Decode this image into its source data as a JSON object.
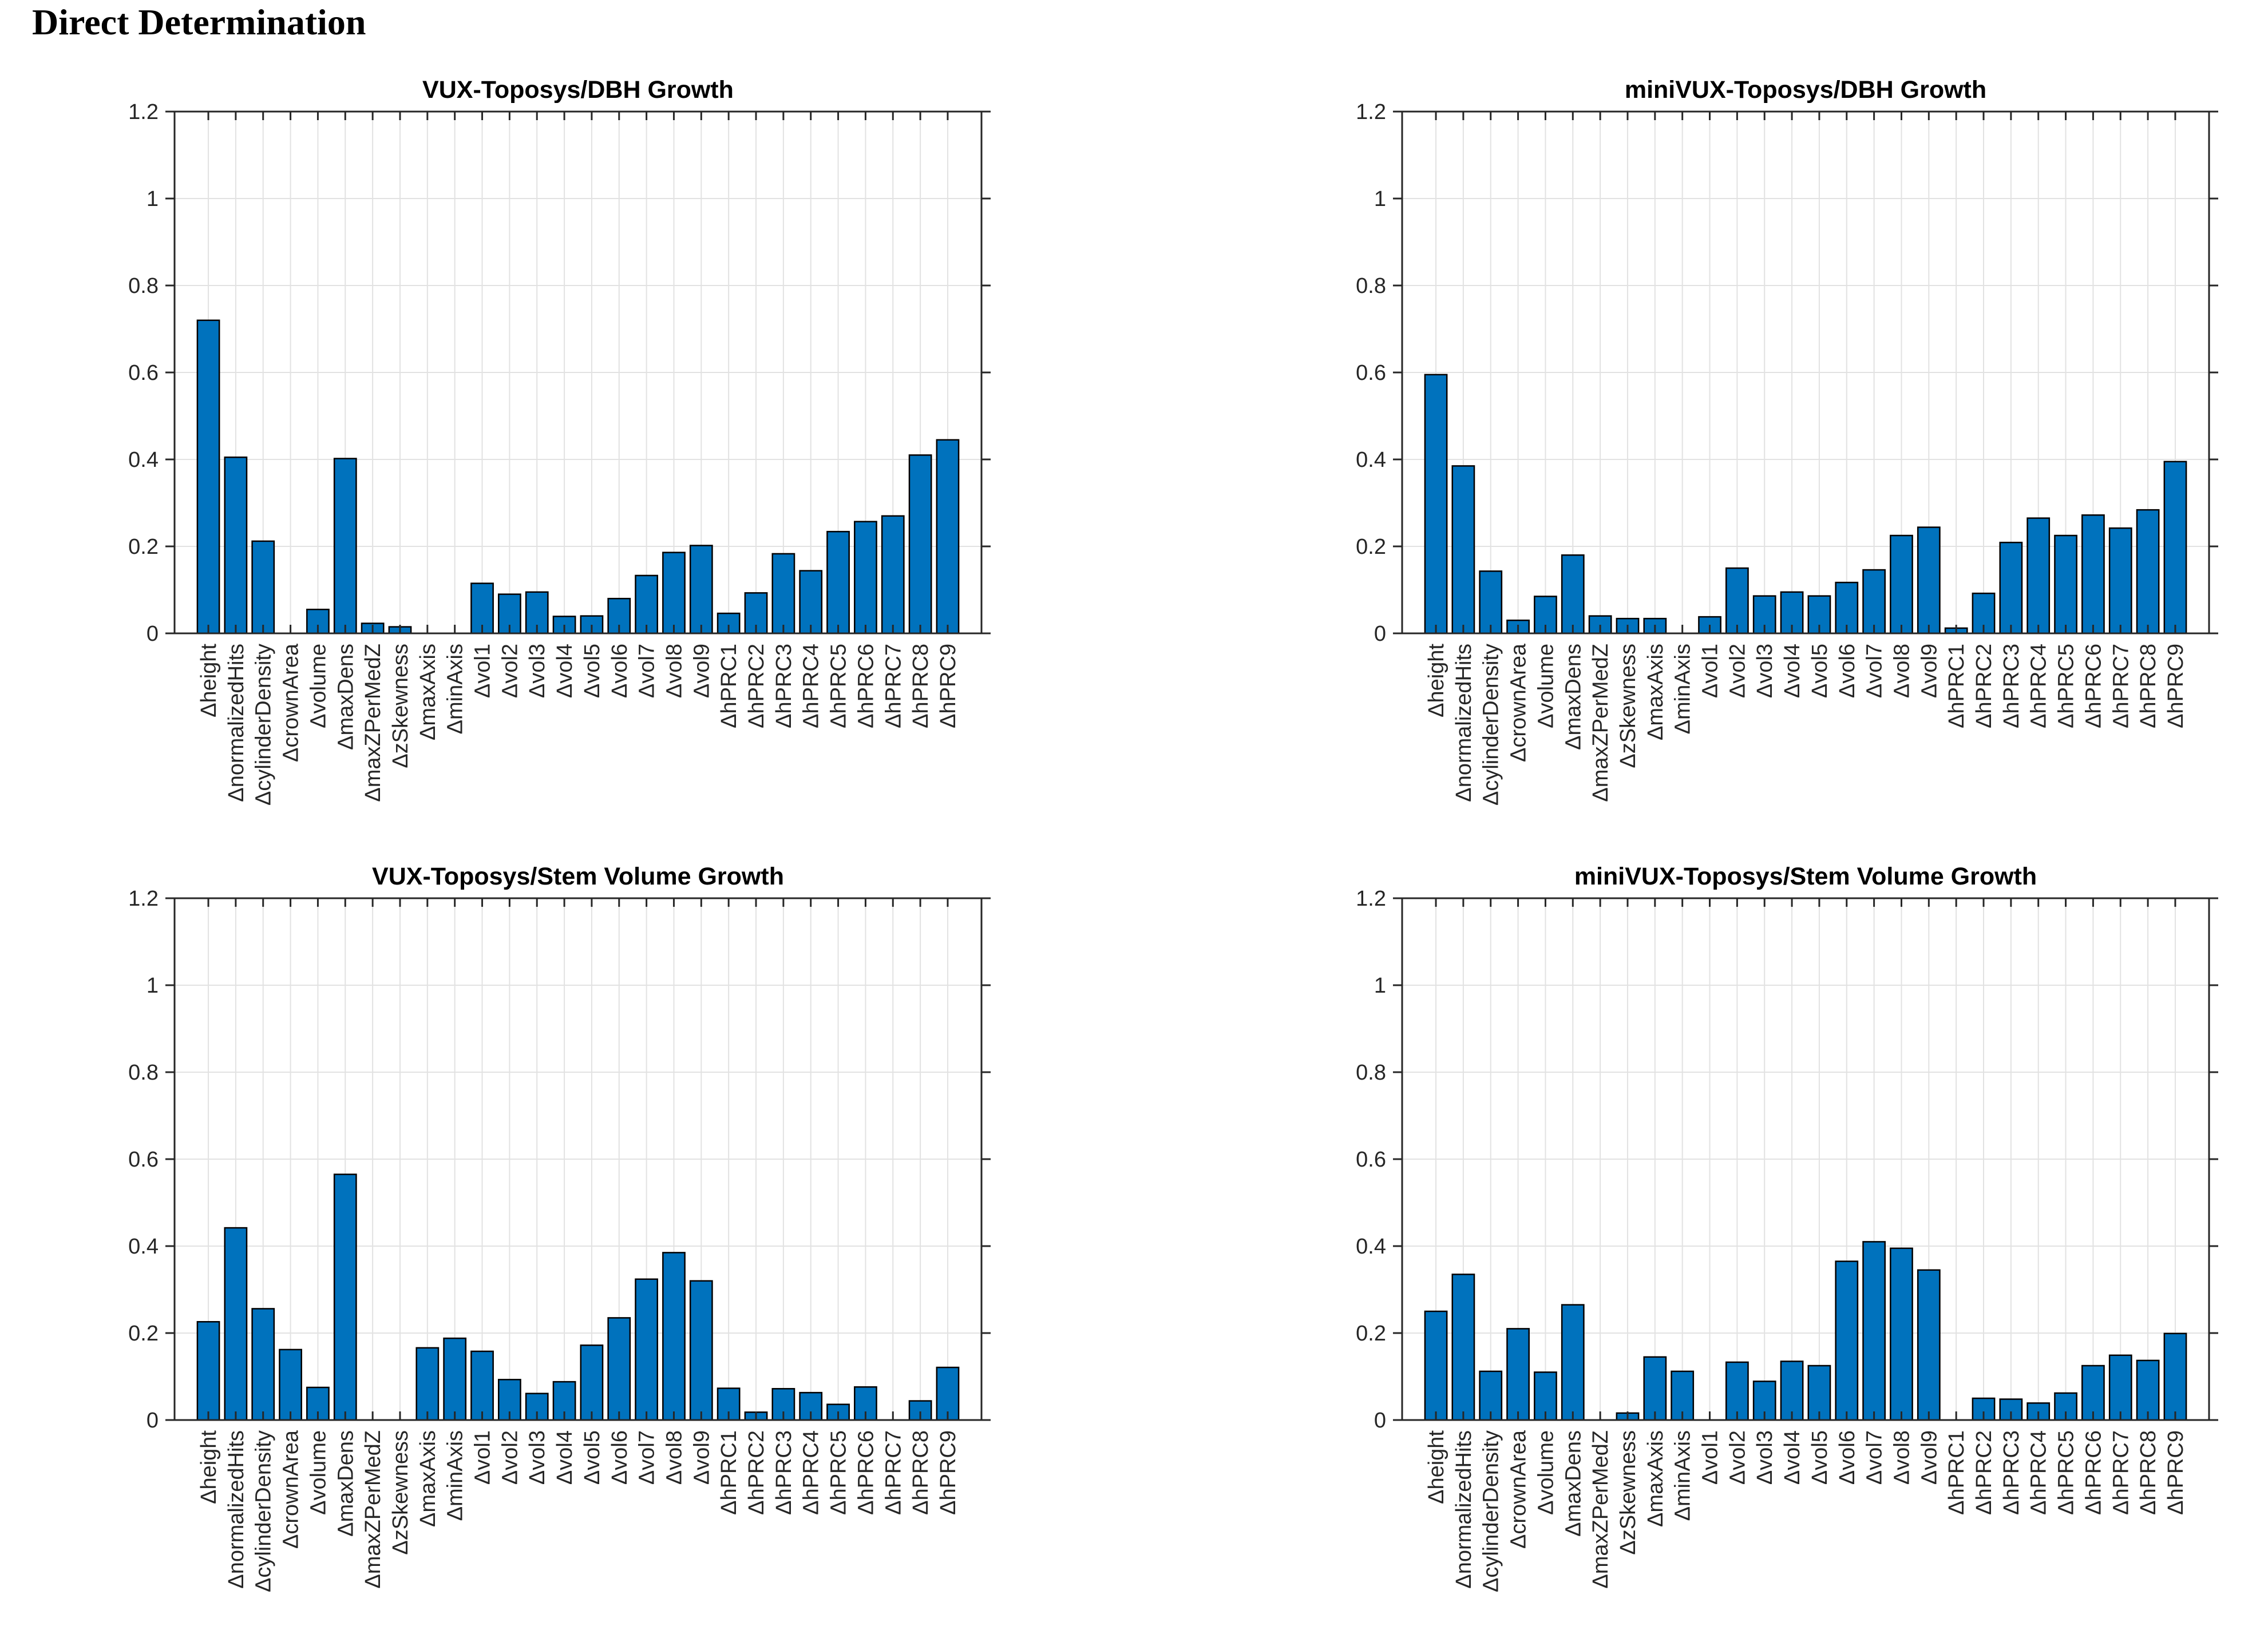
{
  "page": {
    "title": "Direct Determination",
    "background": "#ffffff"
  },
  "style": {
    "bar_color": "#0072BD",
    "bar_edge_color": "#000000",
    "axis_color": "#262626",
    "grid_color": "#e2e2e2",
    "tick_label_color": "#262626",
    "title_color": "#000000"
  },
  "chart_data": [
    {
      "type": "bar",
      "title": "VUX-Toposys/DBH Growth",
      "xlabel": "",
      "ylabel": "",
      "ylim": [
        0,
        1.2
      ],
      "yticks": [
        0,
        0.2,
        0.4,
        0.6,
        0.8,
        1,
        1.2
      ],
      "ytick_labels": [
        "0",
        "0.2",
        "0.4",
        "0.6",
        "0.8",
        "1",
        "1.2"
      ],
      "grid": "on",
      "legend": "none",
      "bar_width": 0.8,
      "categories": [
        "Δheight",
        "ΔnormalizedHits",
        "ΔcylinderDensity",
        "ΔcrownArea",
        "Δvolume",
        "ΔmaxDens",
        "ΔmaxZPerMedZ",
        "ΔzSkewness",
        "ΔmaxAxis",
        "ΔminAxis",
        "Δvol1",
        "Δvol2",
        "Δvol3",
        "Δvol4",
        "Δvol5",
        "Δvol6",
        "Δvol7",
        "Δvol8",
        "Δvol9",
        "ΔhPRC1",
        "ΔhPRC2",
        "ΔhPRC3",
        "ΔhPRC4",
        "ΔhPRC5",
        "ΔhPRC6",
        "ΔhPRC7",
        "ΔhPRC8",
        "ΔhPRC9"
      ],
      "values": [
        0.72,
        0.405,
        0.212,
        0,
        0.055,
        0.402,
        0.023,
        0.015,
        0,
        0,
        0.115,
        0.09,
        0.095,
        0.039,
        0.04,
        0.08,
        0.133,
        0.186,
        0.202,
        0.046,
        0.093,
        0.183,
        0.144,
        0.234,
        0.257,
        0.27,
        0.41,
        0.445
      ]
    },
    {
      "type": "bar",
      "title": "miniVUX-Toposys/DBH Growth",
      "xlabel": "",
      "ylabel": "",
      "ylim": [
        0,
        1.2
      ],
      "yticks": [
        0,
        0.2,
        0.4,
        0.6,
        0.8,
        1,
        1.2
      ],
      "ytick_labels": [
        "0",
        "0.2",
        "0.4",
        "0.6",
        "0.8",
        "1",
        "1.2"
      ],
      "grid": "on",
      "legend": "none",
      "bar_width": 0.8,
      "categories": [
        "Δheight",
        "ΔnormalizedHits",
        "ΔcylinderDensity",
        "ΔcrownArea",
        "Δvolume",
        "ΔmaxDens",
        "ΔmaxZPerMedZ",
        "ΔzSkewness",
        "ΔmaxAxis",
        "ΔminAxis",
        "Δvol1",
        "Δvol2",
        "Δvol3",
        "Δvol4",
        "Δvol5",
        "Δvol6",
        "Δvol7",
        "Δvol8",
        "Δvol9",
        "ΔhPRC1",
        "ΔhPRC2",
        "ΔhPRC3",
        "ΔhPRC4",
        "ΔhPRC5",
        "ΔhPRC6",
        "ΔhPRC7",
        "ΔhPRC8",
        "ΔhPRC9"
      ],
      "values": [
        0.595,
        0.385,
        0.143,
        0.03,
        0.085,
        0.18,
        0.04,
        0.034,
        0.034,
        0,
        0.038,
        0.15,
        0.086,
        0.095,
        0.086,
        0.117,
        0.146,
        0.225,
        0.244,
        0.012,
        0.092,
        0.209,
        0.265,
        0.225,
        0.272,
        0.242,
        0.284,
        0.395
      ]
    },
    {
      "type": "bar",
      "title": "VUX-Toposys/Stem Volume Growth",
      "xlabel": "",
      "ylabel": "",
      "ylim": [
        0,
        1.2
      ],
      "yticks": [
        0,
        0.2,
        0.4,
        0.6,
        0.8,
        1,
        1.2
      ],
      "ytick_labels": [
        "0",
        "0.2",
        "0.4",
        "0.6",
        "0.8",
        "1",
        "1.2"
      ],
      "grid": "on",
      "legend": "none",
      "bar_width": 0.8,
      "categories": [
        "Δheight",
        "ΔnormalizedHits",
        "ΔcylinderDensity",
        "ΔcrownArea",
        "Δvolume",
        "ΔmaxDens",
        "ΔmaxZPerMedZ",
        "ΔzSkewness",
        "ΔmaxAxis",
        "ΔminAxis",
        "Δvol1",
        "Δvol2",
        "Δvol3",
        "Δvol4",
        "Δvol5",
        "Δvol6",
        "Δvol7",
        "Δvol8",
        "Δvol9",
        "ΔhPRC1",
        "ΔhPRC2",
        "ΔhPRC3",
        "ΔhPRC4",
        "ΔhPRC5",
        "ΔhPRC6",
        "ΔhPRC7",
        "ΔhPRC8",
        "ΔhPRC9"
      ],
      "values": [
        0.226,
        0.442,
        0.256,
        0.162,
        0.075,
        0.565,
        0,
        0,
        0.166,
        0.188,
        0.158,
        0.093,
        0.061,
        0.088,
        0.172,
        0.235,
        0.324,
        0.385,
        0.32,
        0.073,
        0.018,
        0.072,
        0.063,
        0.036,
        0.076,
        0,
        0.044,
        0.121
      ]
    },
    {
      "type": "bar",
      "title": "miniVUX-Toposys/Stem Volume Growth",
      "xlabel": "",
      "ylabel": "",
      "ylim": [
        0,
        1.2
      ],
      "yticks": [
        0,
        0.2,
        0.4,
        0.6,
        0.8,
        1,
        1.2
      ],
      "ytick_labels": [
        "0",
        "0.2",
        "0.4",
        "0.6",
        "0.8",
        "1",
        "1.2"
      ],
      "grid": "on",
      "legend": "none",
      "bar_width": 0.8,
      "categories": [
        "Δheight",
        "ΔnormalizedHits",
        "ΔcylinderDensity",
        "ΔcrownArea",
        "Δvolume",
        "ΔmaxDens",
        "ΔmaxZPerMedZ",
        "ΔzSkewness",
        "ΔmaxAxis",
        "ΔminAxis",
        "Δvol1",
        "Δvol2",
        "Δvol3",
        "Δvol4",
        "Δvol5",
        "Δvol6",
        "Δvol7",
        "Δvol8",
        "Δvol9",
        "ΔhPRC1",
        "ΔhPRC2",
        "ΔhPRC3",
        "ΔhPRC4",
        "ΔhPRC5",
        "ΔhPRC6",
        "ΔhPRC7",
        "ΔhPRC8",
        "ΔhPRC9"
      ],
      "values": [
        0.25,
        0.335,
        0.112,
        0.21,
        0.11,
        0.265,
        0,
        0.016,
        0.145,
        0.112,
        0,
        0.133,
        0.089,
        0.135,
        0.125,
        0.365,
        0.41,
        0.395,
        0.345,
        0,
        0.05,
        0.048,
        0.039,
        0.062,
        0.125,
        0.149,
        0.137,
        0.199
      ]
    }
  ]
}
